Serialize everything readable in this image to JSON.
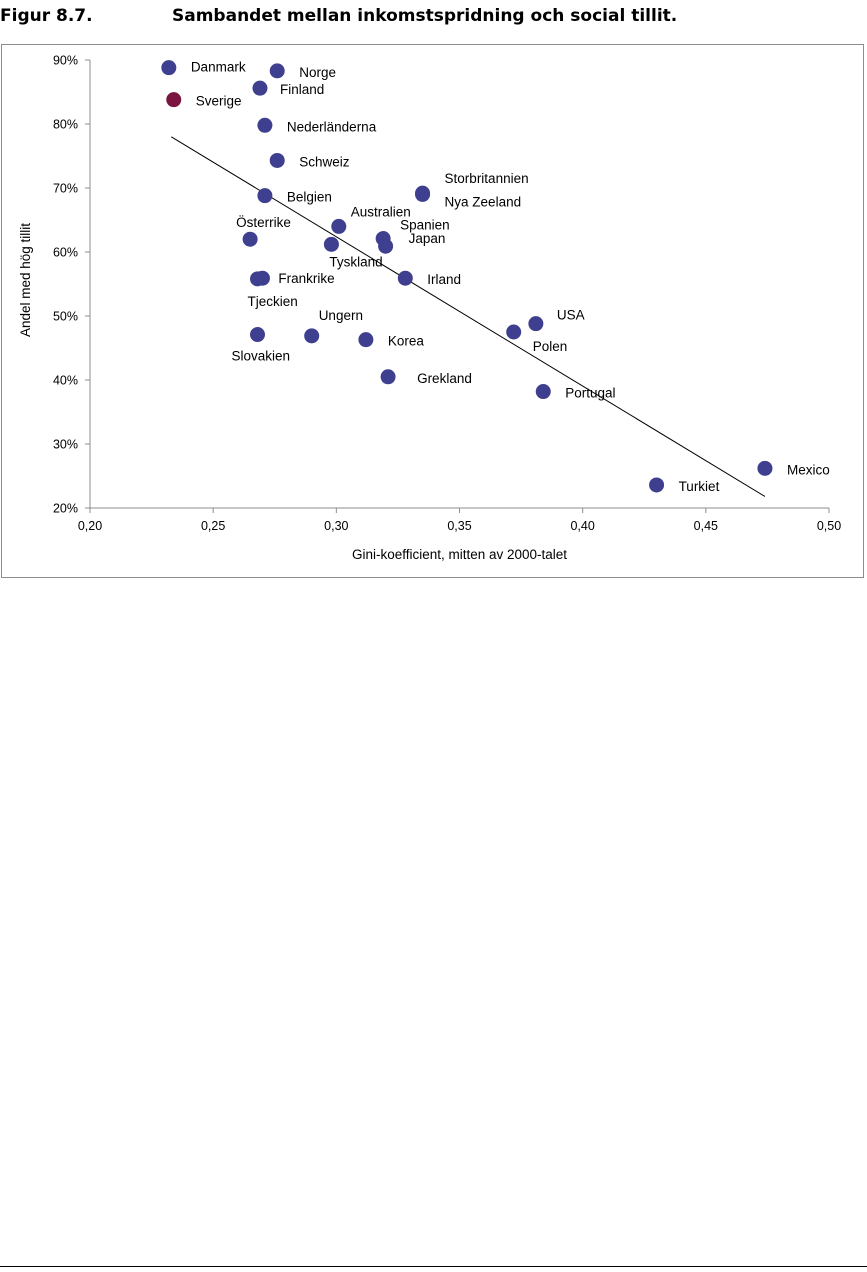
{
  "figure": {
    "number": "Figur 8.7.",
    "title": "Sambandet mellan inkomstspridning och social tillit."
  },
  "chart_data": {
    "type": "scatter",
    "title": "",
    "xlabel": "Gini-koefficient, mitten av 2000-talet",
    "ylabel": "Andel med hög tillit",
    "xlim": [
      0.2,
      0.5
    ],
    "ylim": [
      20,
      90
    ],
    "x_ticks": [
      "0,20",
      "0,25",
      "0,30",
      "0,35",
      "0,40",
      "0,45",
      "0,50"
    ],
    "y_ticks": [
      "20%",
      "30%",
      "40%",
      "50%",
      "60%",
      "70%",
      "80%",
      "90%"
    ],
    "grid": false,
    "legend": "none",
    "point_color": "#3f3f8f",
    "highlight_color": "#7a1540",
    "trendline": {
      "x": [
        0.233,
        0.474
      ],
      "y": [
        78.0,
        21.8
      ]
    },
    "points": [
      {
        "label": "Danmark",
        "x": 0.232,
        "y": 88.8
      },
      {
        "label": "Norge",
        "x": 0.276,
        "y": 88.3
      },
      {
        "label": "Finland",
        "x": 0.269,
        "y": 85.6
      },
      {
        "label": "Sverige",
        "x": 0.234,
        "y": 83.8,
        "highlight": true
      },
      {
        "label": "Nederländerna",
        "x": 0.271,
        "y": 79.8
      },
      {
        "label": "Schweiz",
        "x": 0.276,
        "y": 74.3
      },
      {
        "label": "Belgien",
        "x": 0.271,
        "y": 68.8
      },
      {
        "label": "Storbritannien",
        "x": 0.335,
        "y": 69.2
      },
      {
        "label": "Nya Zeeland",
        "x": 0.335,
        "y": 69.0
      },
      {
        "label": "Australien",
        "x": 0.301,
        "y": 64.0
      },
      {
        "label": "Österrike",
        "x": 0.265,
        "y": 62.0
      },
      {
        "label": "Spanien",
        "x": 0.319,
        "y": 62.1
      },
      {
        "label": "Tyskland",
        "x": 0.298,
        "y": 61.2
      },
      {
        "label": "Japan",
        "x": 0.32,
        "y": 60.9
      },
      {
        "label": "Frankrike",
        "x": 0.27,
        "y": 55.9
      },
      {
        "label": "Tjeckien",
        "x": 0.268,
        "y": 55.8
      },
      {
        "label": "Irland",
        "x": 0.328,
        "y": 55.9
      },
      {
        "label": "USA",
        "x": 0.381,
        "y": 48.8
      },
      {
        "label": "Polen",
        "x": 0.372,
        "y": 47.5
      },
      {
        "label": "Slovakien",
        "x": 0.268,
        "y": 47.1
      },
      {
        "label": "Ungern",
        "x": 0.29,
        "y": 46.9
      },
      {
        "label": "Korea",
        "x": 0.312,
        "y": 46.3
      },
      {
        "label": "Grekland",
        "x": 0.321,
        "y": 40.5
      },
      {
        "label": "Portugal",
        "x": 0.384,
        "y": 38.2
      },
      {
        "label": "Mexico",
        "x": 0.474,
        "y": 26.2
      },
      {
        "label": "Turkiet",
        "x": 0.43,
        "y": 23.6
      }
    ]
  }
}
